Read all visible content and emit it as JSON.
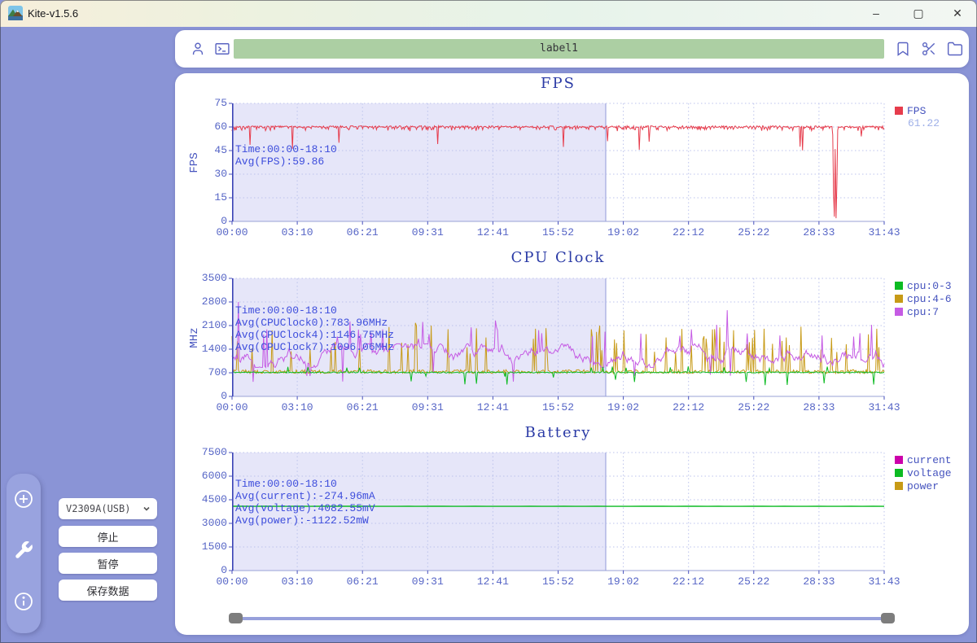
{
  "window": {
    "title": "Kite-v1.5.6",
    "controls": {
      "minimize": "–",
      "maximize": "▢",
      "close": "✕"
    }
  },
  "toolbar": {
    "icons": [
      "user-icon",
      "terminal-icon",
      "bookmark-icon",
      "scissors-icon",
      "folder-icon"
    ],
    "label_input": {
      "value": "label1"
    }
  },
  "sidebar": {
    "rail_icons": [
      "add-circle-icon",
      "wrench-icon",
      "info-circle-icon"
    ],
    "device_select": {
      "value": "V2309A(USB)"
    },
    "buttons": {
      "stop": "停止",
      "pause": "暂停",
      "save": "保存数据"
    }
  },
  "colors": {
    "background": "#8A94D6",
    "rail": "#99A3DF",
    "panel": "#FFFFFF",
    "label_field": "#ACCFA3",
    "icon_accent": "#5A64C2",
    "chart_title": "#2B3BA6",
    "tick_text": "#5665C6",
    "annotation_text": "#3D4DDC",
    "legend_text": "#4553BE",
    "legend_value": "#9FB0E8",
    "fps_line": "#E63C4C",
    "cpu03_line": "#0CBB22",
    "cpu46_line": "#C79A16",
    "cpu7_line": "#C55BE4",
    "current_line": "#CC00AA",
    "voltage_line": "#0CBB22",
    "power_line": "#C79A16",
    "highlight_fill": "#E6E6F9",
    "highlight_edge": "#9098D8",
    "grid": "#BCC3EC",
    "axis": "#3A42B6"
  },
  "chart_data": [
    {
      "type": "line",
      "title": "FPS",
      "ylabel": "FPS",
      "ylim": [
        0,
        75
      ],
      "yticks": [
        0,
        15,
        30,
        45,
        60,
        75
      ],
      "xticks": [
        "00:00",
        "03:10",
        "06:21",
        "09:31",
        "12:41",
        "15:52",
        "19:02",
        "22:12",
        "25:22",
        "28:33",
        "31:43"
      ],
      "grid": true,
      "legend_position": "right",
      "highlight_region": {
        "from": "00:00",
        "to": "18:10",
        "fraction": 0.573
      },
      "annotation": [
        "Time:00:00-18:10",
        "Avg(FPS):59.86"
      ],
      "legend": [
        {
          "label": "FPS",
          "color": "#E63C4C",
          "value": "61.22"
        }
      ],
      "series": [
        {
          "name": "FPS",
          "color": "#E63C4C",
          "avg": 59.86,
          "latest": 61.22,
          "gen": {
            "kind": "fps",
            "n": 800,
            "seed": 7,
            "base": 60.2,
            "jitter": 1.1,
            "sagProb": 0.3,
            "sag": 2.3,
            "dipProb": 0.012,
            "dipRange": [
              45,
              52
            ],
            "deepDipFrac": 0.92,
            "deepDipSeq": [
              55,
              18,
              3,
              46,
              2,
              24,
              58
            ],
            "midDipFrac": 0.871,
            "midDipVal": 47.5,
            "lateDipFrac": 0.964,
            "lateDipVal": 54
          }
        }
      ]
    },
    {
      "type": "line",
      "title": "CPU Clock",
      "ylabel": "MHz",
      "ylim": [
        0,
        3500
      ],
      "yticks": [
        0,
        700,
        1400,
        2100,
        2800,
        3500
      ],
      "xticks": [
        "00:00",
        "03:10",
        "06:21",
        "09:31",
        "12:41",
        "15:52",
        "19:02",
        "22:12",
        "25:22",
        "28:33",
        "31:43"
      ],
      "grid": true,
      "legend_position": "right",
      "highlight_region": {
        "from": "00:00",
        "to": "18:10",
        "fraction": 0.573
      },
      "annotation": [
        "Time:00:00-18:10",
        "Avg(CPUClock0):783.96MHz",
        "Avg(CPUClock4):1146.75MHz",
        "Avg(CPUClock7):1096.06MHz"
      ],
      "legend": [
        {
          "label": "cpu:0-3",
          "color": "#0CBB22"
        },
        {
          "label": "cpu:4-6",
          "color": "#C79A16"
        },
        {
          "label": "cpu:7",
          "color": "#C55BE4"
        }
      ],
      "series": [
        {
          "name": "cpu:4-6",
          "color": "#C79A16",
          "avg": 1146.75,
          "gen": {
            "kind": "spiky",
            "n": 620,
            "seed": 23,
            "base": 735,
            "jitter": 110,
            "spikeProb": 0.075,
            "spikeRange": [
              1250,
              2100
            ],
            "tallProb": 0.008,
            "tallRange": [
              2050,
              2200
            ]
          }
        },
        {
          "name": "cpu:7",
          "color": "#C55BE4",
          "avg": 1096.06,
          "gen": {
            "kind": "walk",
            "n": 620,
            "seed": 37,
            "start": 1200,
            "step": 260,
            "min": 860,
            "max": 1560,
            "spikeProb": 0.045,
            "spikeRange": [
              1700,
              2250
            ],
            "tallProb": 0.004,
            "tallRange": [
              2500,
              2800
            ],
            "initSpikeIndex": 6,
            "initSpikeValue": 2800,
            "dipProb": 0.015,
            "dipRange": [
              420,
              700
            ]
          }
        },
        {
          "name": "cpu:0-3",
          "color": "#0CBB22",
          "avg": 783.96,
          "gen": {
            "kind": "flat",
            "n": 620,
            "seed": 11,
            "base": 712,
            "jitter": 36,
            "dipProb": 0.02,
            "dipRange": [
              330,
              640
            ],
            "spikeProb": 0.015,
            "spikeRange": [
              820,
              900
            ]
          }
        }
      ]
    },
    {
      "type": "line",
      "title": "Battery",
      "ylabel": "",
      "ylim": [
        0,
        7500
      ],
      "yticks": [
        0,
        1500,
        3000,
        4500,
        6000,
        7500
      ],
      "xticks": [
        "00:00",
        "03:10",
        "06:21",
        "09:31",
        "12:41",
        "15:52",
        "19:02",
        "22:12",
        "25:22",
        "28:33",
        "31:43"
      ],
      "grid": true,
      "legend_position": "right",
      "highlight_region": {
        "from": "00:00",
        "to": "18:10",
        "fraction": 0.573
      },
      "annotation": [
        "Time:00:00-18:10",
        "Avg(current):-274.96mA",
        "Avg(voltage):4082.55mV",
        "Avg(power):-1122.52mW"
      ],
      "legend": [
        {
          "label": "current",
          "color": "#CC00AA"
        },
        {
          "label": "voltage",
          "color": "#0CBB22"
        },
        {
          "label": "power",
          "color": "#C79A16"
        }
      ],
      "series": [
        {
          "name": "voltage",
          "color": "#0CBB22",
          "avg": 4082.55,
          "gen": {
            "kind": "const",
            "n": 60,
            "seed": 5,
            "value": 4083,
            "jitter": 6
          }
        },
        {
          "name": "current",
          "color": "#CC00AA",
          "avg": -274.96,
          "gen": {
            "kind": "offscreen"
          }
        },
        {
          "name": "power",
          "color": "#C79A16",
          "avg": -1122.52,
          "gen": {
            "kind": "offscreen"
          }
        }
      ]
    }
  ]
}
